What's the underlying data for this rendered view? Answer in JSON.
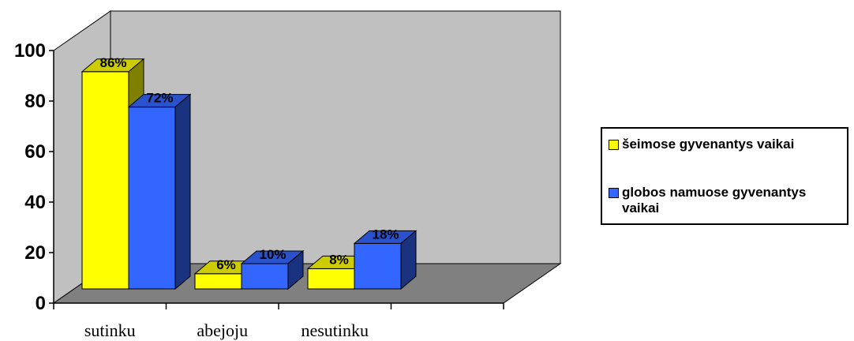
{
  "chart_data": {
    "type": "bar",
    "categories": [
      "sutinku",
      "abejoju",
      "nesutinku"
    ],
    "series": [
      {
        "name": "šeimose gyvenantys vaikai",
        "values": [
          86,
          6,
          8
        ],
        "labels": [
          "86%",
          "6%",
          "8%"
        ],
        "color": "#FFFF00"
      },
      {
        "name": "globos namuose gyvenantys vaikai",
        "values": [
          72,
          10,
          18
        ],
        "labels": [
          "72%",
          "10%",
          "18%"
        ],
        "color": "#3366FF"
      }
    ],
    "ylim": [
      0,
      100
    ],
    "yticks": [
      "0",
      "20",
      "40",
      "60",
      "80",
      "100"
    ],
    "legend_position": "right",
    "style": "3d-clustered-bar",
    "wall_color": "#C0C0C0",
    "floor_color": "#808080"
  }
}
